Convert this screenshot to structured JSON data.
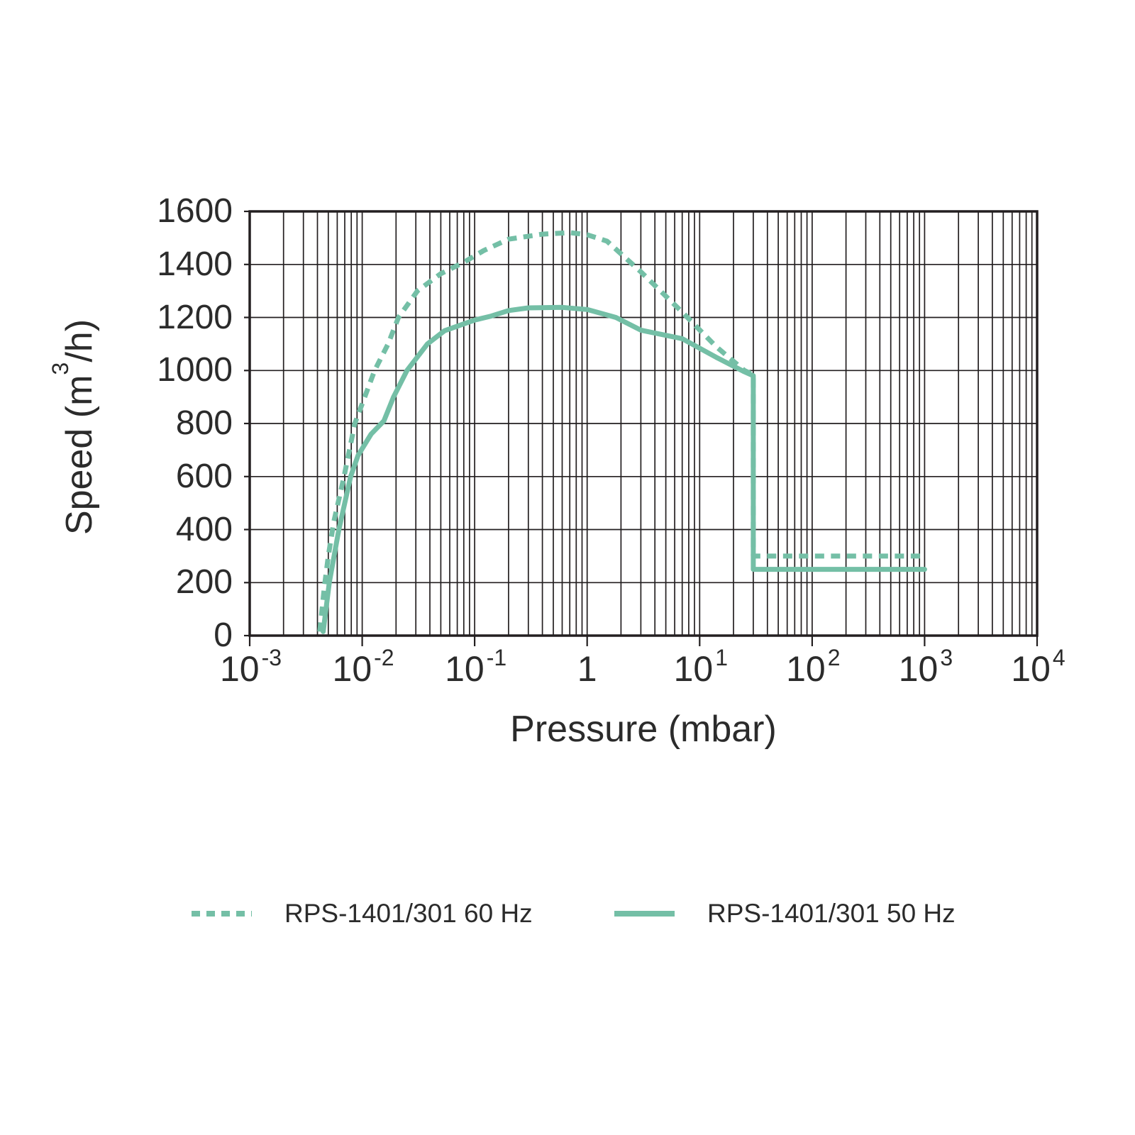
{
  "colors": {
    "accent": "#74bfa6",
    "grid": "#231f20",
    "text": "#2b2b2b"
  },
  "chart_data": {
    "type": "line",
    "title": "",
    "xlabel": "Pressure (mbar)",
    "ylabel": {
      "pre": "Speed (m",
      "sup": "3",
      "post": "/h)"
    },
    "xscale": "log",
    "xlim": [
      0.001,
      10000
    ],
    "ylim": [
      0,
      1600
    ],
    "grid": true,
    "legend_position": "bottom",
    "y_ticks": [
      {
        "label": "0",
        "value": 0
      },
      {
        "label": "200",
        "value": 200
      },
      {
        "label": "400",
        "value": 400
      },
      {
        "label": "600",
        "value": 600
      },
      {
        "label": "800",
        "value": 800
      },
      {
        "label": "1000",
        "value": 1000
      },
      {
        "label": "1200",
        "value": 1200
      },
      {
        "label": "1400",
        "value": 1400
      },
      {
        "label": "1600",
        "value": 1600
      }
    ],
    "x_ticks": [
      {
        "base": "10",
        "exp": "-3",
        "value": 0.001
      },
      {
        "base": "10",
        "exp": "-2",
        "value": 0.01
      },
      {
        "base": "10",
        "exp": "-1",
        "value": 0.1
      },
      {
        "base": "1",
        "exp": "",
        "value": 1
      },
      {
        "base": "10",
        "exp": "1",
        "value": 10
      },
      {
        "base": "10",
        "exp": "2",
        "value": 100
      },
      {
        "base": "10",
        "exp": "3",
        "value": 1000
      },
      {
        "base": "10",
        "exp": "4",
        "value": 10000
      }
    ],
    "series": [
      {
        "name": "RPS-1401/301 60 Hz",
        "line_style": "dashed",
        "color": "#74bfa6",
        "points": [
          [
            0.0042,
            15
          ],
          [
            0.0046,
            180
          ],
          [
            0.005,
            300
          ],
          [
            0.0056,
            430
          ],
          [
            0.0069,
            600
          ],
          [
            0.0086,
            800
          ],
          [
            0.0129,
            1000
          ],
          [
            0.017,
            1100
          ],
          [
            0.021,
            1200
          ],
          [
            0.031,
            1300
          ],
          [
            0.05,
            1365
          ],
          [
            0.08,
            1408
          ],
          [
            0.12,
            1452
          ],
          [
            0.2,
            1495
          ],
          [
            0.4,
            1514
          ],
          [
            0.7,
            1520
          ],
          [
            1.0,
            1512
          ],
          [
            1.5,
            1488
          ],
          [
            3,
            1372
          ],
          [
            7,
            1220
          ],
          [
            14,
            1090
          ],
          [
            25,
            1000
          ],
          [
            30,
            984
          ],
          [
            30,
            300
          ],
          [
            1000,
            300
          ]
        ]
      },
      {
        "name": "RPS-1401/301 50 Hz",
        "line_style": "solid",
        "color": "#74bfa6",
        "points": [
          [
            0.0045,
            15
          ],
          [
            0.0051,
            200
          ],
          [
            0.0062,
            400
          ],
          [
            0.0079,
            600
          ],
          [
            0.0092,
            680
          ],
          [
            0.012,
            760
          ],
          [
            0.0156,
            810
          ],
          [
            0.019,
            900
          ],
          [
            0.025,
            1000
          ],
          [
            0.038,
            1100
          ],
          [
            0.054,
            1150
          ],
          [
            0.1,
            1190
          ],
          [
            0.14,
            1205
          ],
          [
            0.2,
            1226
          ],
          [
            0.3,
            1236
          ],
          [
            0.6,
            1238
          ],
          [
            1.0,
            1230
          ],
          [
            1.8,
            1200
          ],
          [
            3,
            1152
          ],
          [
            7,
            1120
          ],
          [
            14,
            1050
          ],
          [
            25,
            995
          ],
          [
            30,
            980
          ],
          [
            30,
            250
          ],
          [
            1000,
            250
          ]
        ]
      }
    ]
  },
  "legend": {
    "items": [
      {
        "label": "RPS-1401/301 60 Hz",
        "style": "dashed"
      },
      {
        "label": "RPS-1401/301 50 Hz",
        "style": "solid"
      }
    ]
  }
}
